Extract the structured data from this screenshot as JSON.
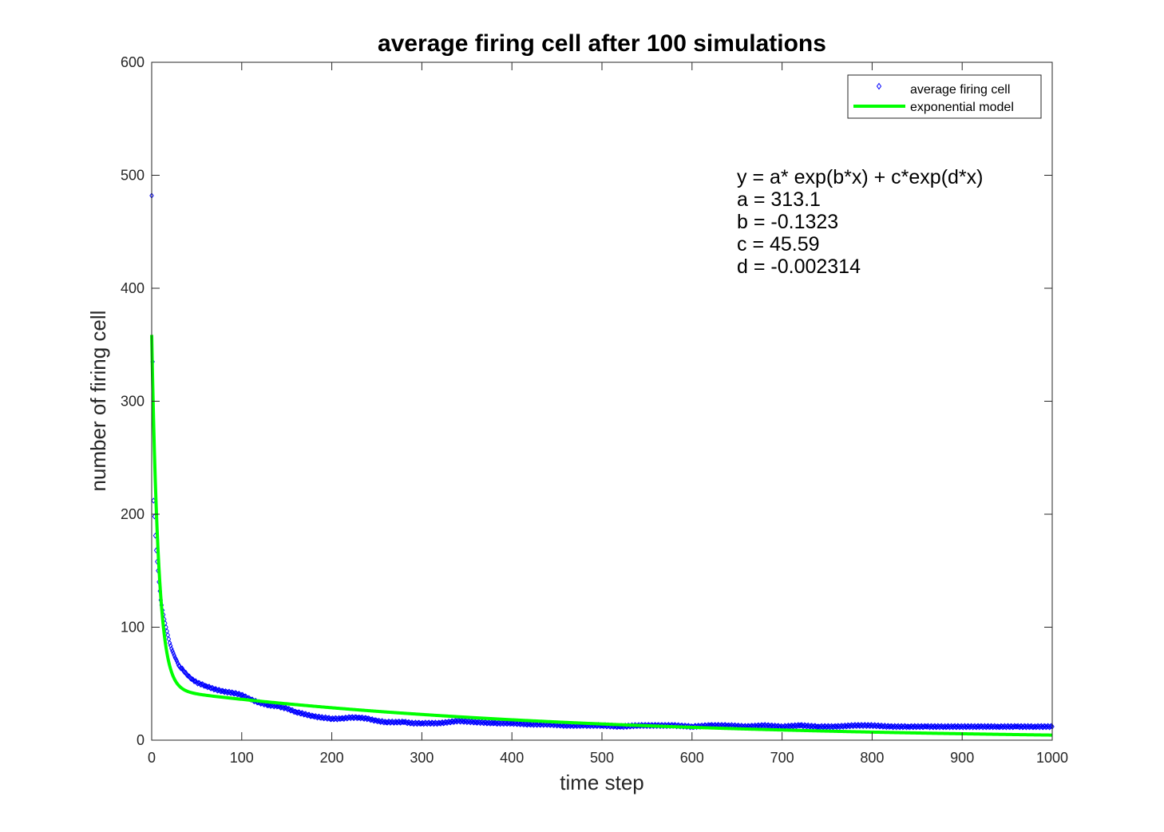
{
  "chart_data": {
    "type": "scatter",
    "title": "average firing cell after 100 simulations",
    "xlabel": "time step",
    "ylabel": "number of firing cell",
    "xlim": [
      0,
      1000
    ],
    "ylim": [
      0,
      600
    ],
    "x_ticks": [
      "0",
      "100",
      "200",
      "300",
      "400",
      "500",
      "600",
      "700",
      "800",
      "900",
      "1000"
    ],
    "y_ticks": [
      "0",
      "100",
      "200",
      "300",
      "400",
      "500",
      "600"
    ],
    "grid": false,
    "legend_position": "top-right",
    "series": [
      {
        "name": "average firing cell",
        "kind": "scatter",
        "marker": "diamond",
        "color": "#0000ff",
        "points": [
          [
            0,
            482
          ],
          [
            1,
            335
          ],
          [
            2,
            212
          ],
          [
            3,
            198
          ],
          [
            4,
            181
          ],
          [
            5,
            168
          ],
          [
            6,
            158
          ],
          [
            7,
            150
          ],
          [
            8,
            140
          ],
          [
            9,
            132
          ],
          [
            10,
            124
          ],
          [
            12,
            115
          ],
          [
            14,
            107
          ],
          [
            16,
            100
          ],
          [
            18,
            93
          ],
          [
            20,
            86
          ],
          [
            22,
            81
          ],
          [
            24,
            77
          ],
          [
            26,
            73
          ],
          [
            28,
            70
          ],
          [
            30,
            66
          ],
          [
            35,
            62
          ],
          [
            40,
            57
          ],
          [
            45,
            54
          ],
          [
            50,
            51
          ],
          [
            60,
            48
          ],
          [
            70,
            45
          ],
          [
            80,
            43
          ],
          [
            90,
            42
          ],
          [
            100,
            40
          ],
          [
            110,
            36
          ],
          [
            120,
            33
          ],
          [
            130,
            31
          ],
          [
            140,
            30
          ],
          [
            150,
            28
          ],
          [
            160,
            25
          ],
          [
            170,
            23
          ],
          [
            180,
            21
          ],
          [
            190,
            20
          ],
          [
            200,
            19
          ],
          [
            210,
            19
          ],
          [
            220,
            20
          ],
          [
            230,
            20
          ],
          [
            240,
            19
          ],
          [
            250,
            17
          ],
          [
            260,
            16
          ],
          [
            270,
            16
          ],
          [
            280,
            16
          ],
          [
            290,
            15
          ],
          [
            300,
            15
          ],
          [
            320,
            15
          ],
          [
            340,
            17
          ],
          [
            360,
            16
          ],
          [
            380,
            15
          ],
          [
            400,
            15
          ],
          [
            420,
            14
          ],
          [
            440,
            14
          ],
          [
            460,
            13
          ],
          [
            480,
            13
          ],
          [
            500,
            13
          ],
          [
            520,
            12
          ],
          [
            540,
            13
          ],
          [
            560,
            13
          ],
          [
            580,
            13
          ],
          [
            600,
            12
          ],
          [
            620,
            13
          ],
          [
            640,
            13
          ],
          [
            660,
            12
          ],
          [
            680,
            13
          ],
          [
            700,
            12
          ],
          [
            720,
            13
          ],
          [
            740,
            12
          ],
          [
            760,
            12
          ],
          [
            780,
            13
          ],
          [
            800,
            13
          ],
          [
            820,
            12
          ],
          [
            840,
            12
          ],
          [
            860,
            12
          ],
          [
            880,
            12
          ],
          [
            900,
            12
          ],
          [
            920,
            12
          ],
          [
            940,
            12
          ],
          [
            960,
            12
          ],
          [
            980,
            12
          ],
          [
            1000,
            12
          ]
        ]
      },
      {
        "name": "exponential model",
        "kind": "line",
        "color": "#00ff00"
      }
    ],
    "model": {
      "a": 313.1,
      "b": -0.1323,
      "c": 45.59,
      "d": -0.002314
    }
  },
  "annotation_lines": [
    "y = a* exp(b*x) + c*exp(d*x)",
    "a = 313.1",
    "b = -0.1323",
    "c = 45.59",
    "d = -0.002314"
  ]
}
